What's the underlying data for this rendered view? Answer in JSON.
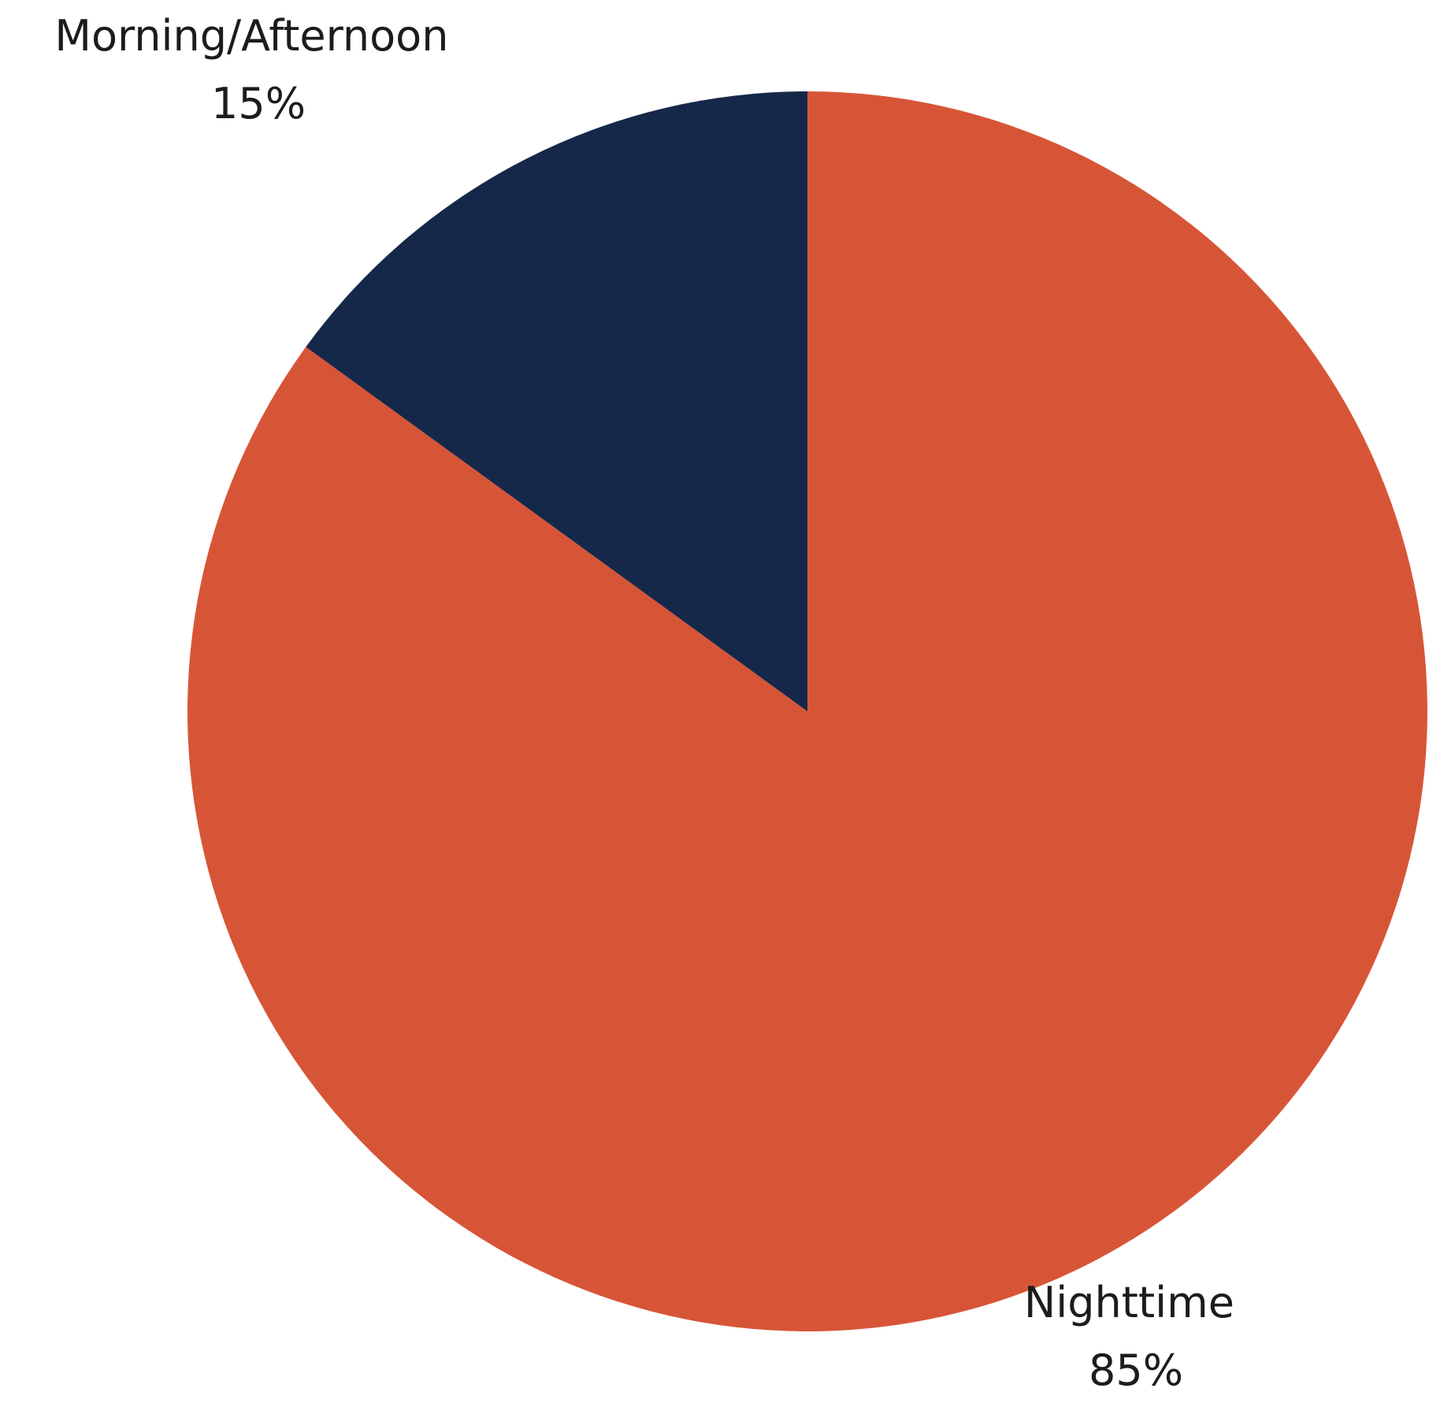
{
  "chart_data": {
    "type": "pie",
    "title": "",
    "start_angle_deg": 0,
    "direction": "clockwise",
    "slices": [
      {
        "label": "Nighttime",
        "value": 85,
        "value_label": "85%",
        "color": "#d75537"
      },
      {
        "label": "Morning/Afternoon",
        "value": 15,
        "value_label": "15%",
        "color": "#16284a"
      }
    ]
  }
}
